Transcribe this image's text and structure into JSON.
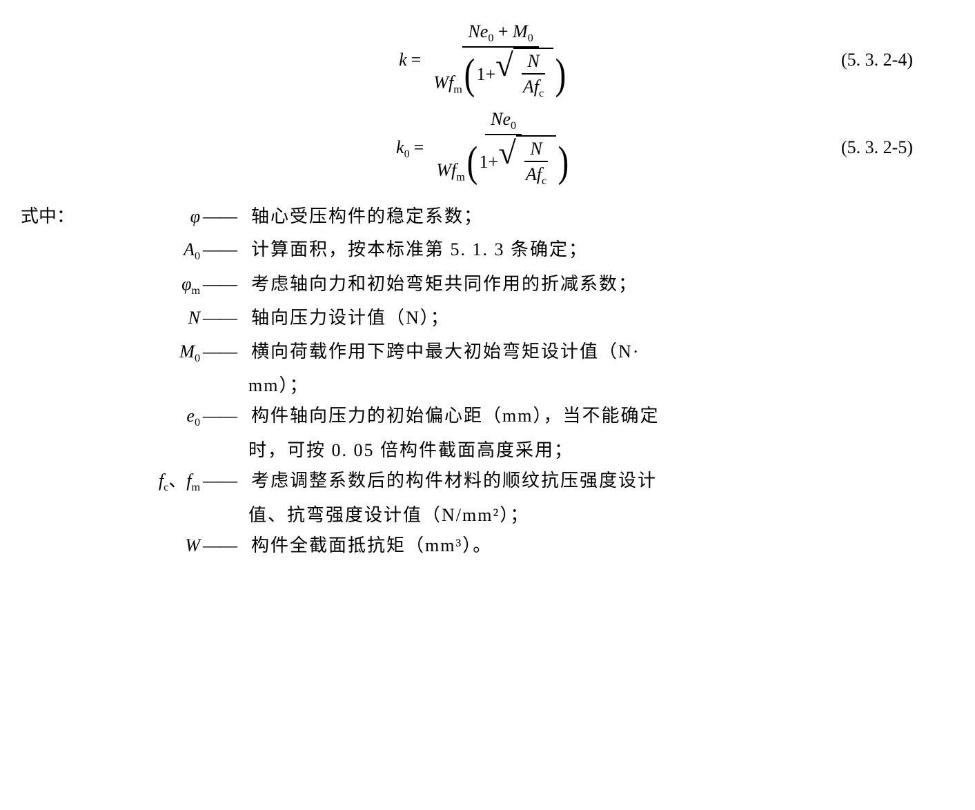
{
  "eq1": {
    "lhs_var": "k",
    "eq_sign": "=",
    "num_N": "N",
    "num_e0": "e",
    "num_e0_sub": "0",
    "plus": "+",
    "num_M": "M",
    "num_M_sub": "0",
    "den_W": "W",
    "den_f": "f",
    "den_f_sub": "m",
    "one": "1",
    "den_plus": "+",
    "sqrt_N": "N",
    "sqrt_A": "A",
    "sqrt_f": "f",
    "sqrt_f_sub": "c",
    "number": "(5. 3. 2-4)"
  },
  "eq2": {
    "lhs_var": "k",
    "lhs_sub": "0",
    "eq_sign": "=",
    "num_N": "N",
    "num_e0": "e",
    "num_e0_sub": "0",
    "den_W": "W",
    "den_f": "f",
    "den_f_sub": "m",
    "one": "1",
    "den_plus": "+",
    "sqrt_N": "N",
    "sqrt_A": "A",
    "sqrt_f": "f",
    "sqrt_f_sub": "c",
    "number": "(5. 3. 2-5)"
  },
  "defs_header": "式中：",
  "dash": "——",
  "defs": {
    "d1": {
      "sym_html": "φ",
      "desc": "轴心受压构件的稳定系数；"
    },
    "d2": {
      "sym_var": "A",
      "sym_sub": "0",
      "desc": "计算面积，按本标准第 5. 1. 3 条确定；"
    },
    "d3": {
      "sym_html": "φ",
      "sym_sub": "m",
      "desc": "考虑轴向力和初始弯矩共同作用的折减系数；"
    },
    "d4": {
      "sym_var": "N",
      "desc": "轴向压力设计值（N）；"
    },
    "d5": {
      "sym_var": "M",
      "sym_sub": "0",
      "desc": "横向荷载作用下跨中最大初始弯矩设计值（N·",
      "cont": "mm）；"
    },
    "d6": {
      "sym_var": "e",
      "sym_sub": "0",
      "desc": "构件轴向压力的初始偏心距（mm），当不能确定",
      "cont": "时，可按 0. 05 倍构件截面高度采用；"
    },
    "d7": {
      "sym_var1": "f",
      "sym_sub1": "c",
      "sep": "、",
      "sym_var2": "f",
      "sym_sub2": "m",
      "desc": "考虑调整系数后的构件材料的顺纹抗压强度设计",
      "cont": "值、抗弯强度设计值（N/mm²）；"
    },
    "d8": {
      "sym_var": "W",
      "desc": "构件全截面抵抗矩（mm³）。"
    }
  }
}
